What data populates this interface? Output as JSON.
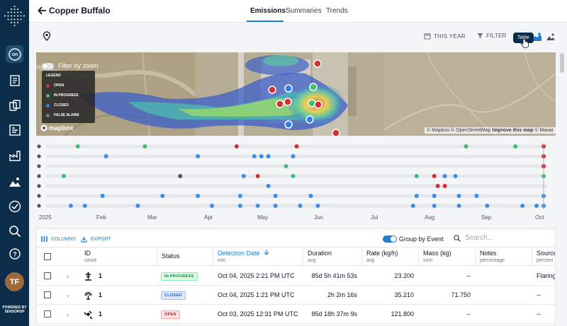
{
  "app": {
    "logo_text": "SENSORUP"
  },
  "sidebar": {
    "items": [
      {
        "icon": "oh-icon",
        "label": "OH",
        "active": true
      },
      {
        "icon": "document-list-icon"
      },
      {
        "icon": "cards-icon"
      },
      {
        "icon": "dashboard-icon"
      },
      {
        "icon": "facility-icon"
      },
      {
        "icon": "map-terrain-icon"
      },
      {
        "icon": "check-circle-icon"
      },
      {
        "icon": "zoom-search-icon"
      },
      {
        "icon": "help-icon"
      }
    ],
    "avatar_initials": "TF",
    "powered_by": "POWERED BY",
    "powered_brand": "SENSORUP"
  },
  "header": {
    "title": "Copper Buffalo",
    "tabs": [
      {
        "label": "Emissions",
        "active": true
      },
      {
        "label": "Summaries",
        "active": false
      },
      {
        "label": "Trends",
        "active": false
      }
    ]
  },
  "toolbar": {
    "date_range": "THIS YEAR",
    "filter": "FILTER",
    "tooltip": "Table"
  },
  "map": {
    "filter_by_zoom": "Filter by zoom",
    "legend_title": "LEGEND",
    "legend": [
      {
        "label": "OPEN",
        "color": "#d62f2f"
      },
      {
        "label": "IN PROGRESS",
        "color": "#3fbf6f"
      },
      {
        "label": "CLOSED",
        "color": "#2f80ed"
      },
      {
        "label": "FALSE ALARM",
        "color": "#777777"
      }
    ],
    "mapbox_label": "mapbox",
    "attribution_1": "© Mapbox © OpenStreetMap",
    "attribution_2": "Improve this map",
    "attribution_3": "© Maxar"
  },
  "timeline": {
    "months": [
      "2025",
      "Feb",
      "Mar",
      "Apr",
      "May",
      "Jun",
      "Jul",
      "Aug",
      "Sep",
      "Oct"
    ],
    "rows": [
      {
        "icon": "search-icon",
        "dots": [
          {
            "m": 0.9,
            "c": "green"
          },
          {
            "m": 2.8,
            "c": "green"
          },
          {
            "m": 5.4,
            "c": "red"
          },
          {
            "m": 7.1,
            "c": "red"
          },
          {
            "m": 11.9,
            "c": "green"
          },
          {
            "m": 13.3,
            "c": "green"
          },
          {
            "m": 14.1,
            "c": "red"
          }
        ]
      },
      {
        "icon": "flare-icon",
        "dots": [
          {
            "m": 1.7,
            "c": "blue"
          },
          {
            "m": 4.3,
            "c": "blue"
          },
          {
            "m": 5.9,
            "c": "blue"
          },
          {
            "m": 6.1,
            "c": "blue"
          },
          {
            "m": 6.3,
            "c": "blue"
          },
          {
            "m": 7.0,
            "c": "blue"
          },
          {
            "m": 14.1,
            "c": "red"
          }
        ]
      },
      {
        "icon": "satellite-icon",
        "dots": [
          {
            "m": 6.8,
            "c": "green"
          },
          {
            "m": 14.1,
            "c": "red"
          }
        ]
      },
      {
        "icon": "drone-icon",
        "dots": [
          {
            "m": 0.5,
            "c": "green"
          },
          {
            "m": 3.8,
            "c": "grey"
          },
          {
            "m": 5.6,
            "c": "blue"
          },
          {
            "m": 6.0,
            "c": "red"
          },
          {
            "m": 7.0,
            "c": "green"
          },
          {
            "m": 10.5,
            "c": "green"
          },
          {
            "m": 11.0,
            "c": "red"
          },
          {
            "m": 11.3,
            "c": "blue"
          },
          {
            "m": 11.6,
            "c": "blue"
          },
          {
            "m": 14.1,
            "c": "green"
          }
        ]
      },
      {
        "icon": "tower-icon",
        "dots": [
          {
            "m": 6.3,
            "c": "blue"
          },
          {
            "m": 11.1,
            "c": "red"
          },
          {
            "m": 11.3,
            "c": "red"
          }
        ]
      },
      {
        "icon": "vehicle-icon",
        "dots": [
          {
            "m": 1.6,
            "c": "blue"
          },
          {
            "m": 3.3,
            "c": "blue"
          },
          {
            "m": 4.3,
            "c": "blue"
          },
          {
            "m": 5.5,
            "c": "blue"
          },
          {
            "m": 6.5,
            "c": "blue"
          },
          {
            "m": 7.5,
            "c": "blue"
          },
          {
            "m": 10.5,
            "c": "blue"
          },
          {
            "m": 11.0,
            "c": "blue"
          },
          {
            "m": 11.7,
            "c": "blue"
          },
          {
            "m": 12.2,
            "c": "blue"
          },
          {
            "m": 14.1,
            "c": "blue"
          }
        ]
      },
      {
        "icon": "sensor-icon",
        "dots": [
          {
            "m": 0.7,
            "c": "blue"
          },
          {
            "m": 1.1,
            "c": "blue"
          },
          {
            "m": 2.6,
            "c": "blue"
          },
          {
            "m": 4.7,
            "c": "blue"
          },
          {
            "m": 5.5,
            "c": "blue"
          },
          {
            "m": 6.0,
            "c": "blue"
          },
          {
            "m": 6.5,
            "c": "blue"
          },
          {
            "m": 7.2,
            "c": "blue"
          },
          {
            "m": 7.7,
            "c": "blue"
          },
          {
            "m": 10.4,
            "c": "blue"
          },
          {
            "m": 11.0,
            "c": "blue"
          },
          {
            "m": 11.7,
            "c": "blue"
          },
          {
            "m": 12.5,
            "c": "blue"
          },
          {
            "m": 13.5,
            "c": "blue"
          },
          {
            "m": 13.9,
            "c": "blue"
          },
          {
            "m": 14.1,
            "c": "blue"
          }
        ]
      }
    ],
    "colors": {
      "red": "#d62f2f",
      "green": "#3fbf6f",
      "blue": "#3b8ee8",
      "grey": "#4b5a52"
    }
  },
  "table": {
    "columns_btn": "COLUMNS",
    "export_btn": "EXPORT",
    "group_by_event": "Group by Event",
    "search_placeholder": "Search...",
    "headers": [
      {
        "label": "ID",
        "sub": "count"
      },
      {
        "label": "Status",
        "sub": ""
      },
      {
        "label": "Detection Date",
        "sub": "min"
      },
      {
        "label": "Duration",
        "sub": "avg"
      },
      {
        "label": "Rate (kg/h)",
        "sub": "avg"
      },
      {
        "label": "Mass (kg)",
        "sub": "sum"
      },
      {
        "label": "Notes",
        "sub": "percentage"
      },
      {
        "label": "Source",
        "sub": "percent"
      }
    ],
    "rows": [
      {
        "icon": "flare-icon",
        "id": "1",
        "status": "IN PROGRESS",
        "status_class": "inprogress",
        "date": "Oct 04, 2025 2:21 PM UTC",
        "duration": "85d 5h 41m 53s",
        "rate": "23.200",
        "mass": "--",
        "notes": "",
        "source": "Flaring"
      },
      {
        "icon": "sensor-icon",
        "id": "1",
        "status": "CLOSED",
        "status_class": "closed",
        "date": "Oct 04, 2025 1:21 PM UTC",
        "duration": "2h 2m 16s",
        "rate": "35.210",
        "mass": "71.750",
        "notes": "",
        "source": "--"
      },
      {
        "icon": "satellite-icon",
        "id": "1",
        "status": "OPEN",
        "status_class": "open",
        "date": "Oct 03, 2025 12:31 PM UTC",
        "duration": "85d 18h 37m 9s",
        "rate": "121.800",
        "mass": "--",
        "notes": "",
        "source": "--"
      }
    ]
  }
}
